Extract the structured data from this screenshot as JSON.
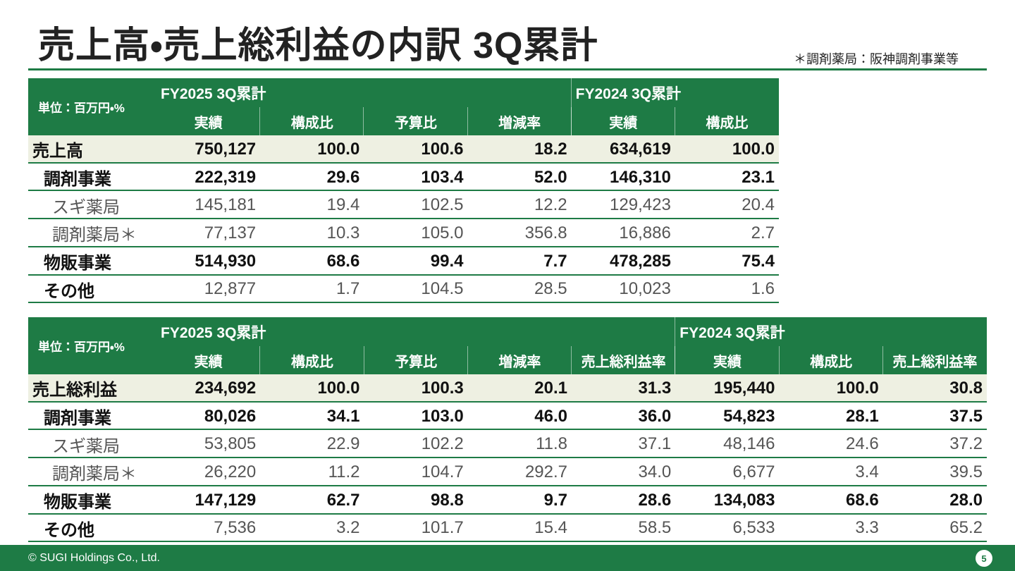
{
  "header": {
    "title": "売上高・売上総利益の内訳 3Q累計",
    "note": "＊調剤薬局：阪神調剤事業等"
  },
  "tables": [
    {
      "unit": "単位：百万円・%",
      "groups": [
        {
          "label": "FY2025 3Q累計",
          "columns": [
            "実績",
            "構成比",
            "予算比",
            "増減率"
          ]
        },
        {
          "label": "FY2024 3Q累計",
          "columns": [
            "実績",
            "構成比"
          ]
        }
      ],
      "rows": [
        {
          "label": "売上高",
          "values": [
            "750,127",
            "100.0",
            "100.6",
            "18.2",
            "634,619",
            "100.0"
          ]
        },
        {
          "label": "調剤事業",
          "values": [
            "222,319",
            "29.6",
            "103.4",
            "52.0",
            "146,310",
            "23.1"
          ]
        },
        {
          "label": "スギ薬局",
          "values": [
            "145,181",
            "19.4",
            "102.5",
            "12.2",
            "129,423",
            "20.4"
          ]
        },
        {
          "label": "調剤薬局＊",
          "values": [
            "77,137",
            "10.3",
            "105.0",
            "356.8",
            "16,886",
            "2.7"
          ]
        },
        {
          "label": "物販事業",
          "values": [
            "514,930",
            "68.6",
            "99.4",
            "7.7",
            "478,285",
            "75.4"
          ]
        },
        {
          "label": "その他",
          "values": [
            "12,877",
            "1.7",
            "104.5",
            "28.5",
            "10,023",
            "1.6"
          ]
        }
      ]
    },
    {
      "unit": "単位：百万円・%",
      "groups": [
        {
          "label": "FY2025 3Q累計",
          "columns": [
            "実績",
            "構成比",
            "予算比",
            "増減率",
            "売上総利益率"
          ]
        },
        {
          "label": "FY2024 3Q累計",
          "columns": [
            "実績",
            "構成比",
            "売上総利益率"
          ]
        }
      ],
      "rows": [
        {
          "label": "売上総利益",
          "values": [
            "234,692",
            "100.0",
            "100.3",
            "20.1",
            "31.3",
            "195,440",
            "100.0",
            "30.8"
          ]
        },
        {
          "label": "調剤事業",
          "values": [
            "80,026",
            "34.1",
            "103.0",
            "46.0",
            "36.0",
            "54,823",
            "28.1",
            "37.5"
          ]
        },
        {
          "label": "スギ薬局",
          "values": [
            "53,805",
            "22.9",
            "102.2",
            "11.8",
            "37.1",
            "48,146",
            "24.6",
            "37.2"
          ]
        },
        {
          "label": "調剤薬局＊",
          "values": [
            "26,220",
            "11.2",
            "104.7",
            "292.7",
            "34.0",
            "6,677",
            "3.4",
            "39.5"
          ]
        },
        {
          "label": "物販事業",
          "values": [
            "147,129",
            "62.7",
            "98.8",
            "9.7",
            "28.6",
            "134,083",
            "68.6",
            "28.0"
          ]
        },
        {
          "label": "その他",
          "values": [
            "7,536",
            "3.2",
            "101.7",
            "15.4",
            "58.5",
            "6,533",
            "3.3",
            "65.2"
          ]
        }
      ]
    }
  ],
  "footer": {
    "copyright": "© SUGI Holdings Co., Ltd.",
    "page": "5"
  }
}
